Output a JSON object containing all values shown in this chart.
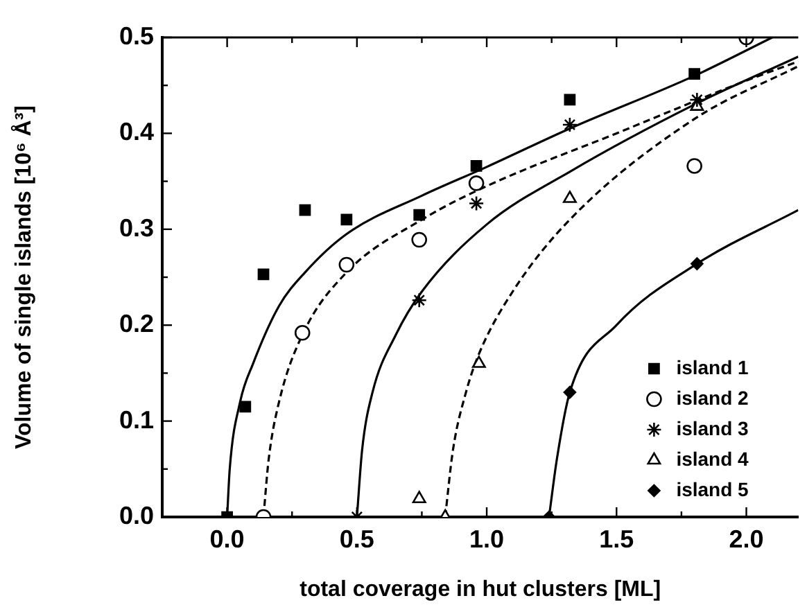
{
  "chart_data": {
    "type": "scatter",
    "xlabel": "total coverage in hut clusters [ML]",
    "ylabel": "Volume of single islands [10⁶ Å³]",
    "xlim": [
      -0.25,
      2.2
    ],
    "ylim": [
      0,
      0.5
    ],
    "xticks": [
      {
        "value": -0.25,
        "label": null
      },
      {
        "value": 0,
        "label": "0.0"
      },
      {
        "value": 0.25,
        "label": null
      },
      {
        "value": 0.5,
        "label": "0.5"
      },
      {
        "value": 0.75,
        "label": null
      },
      {
        "value": 1,
        "label": "1.0"
      },
      {
        "value": 1.25,
        "label": null
      },
      {
        "value": 1.5,
        "label": "1.5"
      },
      {
        "value": 1.75,
        "label": null
      },
      {
        "value": 2,
        "label": "2.0"
      }
    ],
    "yticks": [
      {
        "value": 0,
        "label": "0.0"
      },
      {
        "value": 0.05,
        "label": null
      },
      {
        "value": 0.1,
        "label": "0.1"
      },
      {
        "value": 0.15,
        "label": null
      },
      {
        "value": 0.2,
        "label": "0.2"
      },
      {
        "value": 0.25,
        "label": null
      },
      {
        "value": 0.3,
        "label": "0.3"
      },
      {
        "value": 0.35,
        "label": null
      },
      {
        "value": 0.4,
        "label": "0.4"
      },
      {
        "value": 0.45,
        "label": null
      },
      {
        "value": 0.5,
        "label": "0.5"
      }
    ],
    "legend": "bottom right",
    "series": [
      {
        "name": "island 1",
        "color": "#000000",
        "marker": "square",
        "x": [
          0,
          0.07,
          0.14,
          0.3,
          0.46,
          0.74,
          0.96,
          1.32,
          1.8
        ],
        "values": [
          0,
          0.115,
          0.253,
          0.32,
          0.31,
          0.315,
          0.366,
          0.435,
          0.462
        ]
      },
      {
        "name": "island 2",
        "color": "#000000",
        "marker": "circle",
        "x": [
          0.14,
          0.29,
          0.46,
          0.74,
          0.96,
          1.8,
          2.0
        ],
        "values": [
          0,
          0.192,
          0.263,
          0.289,
          0.348,
          0.366,
          0.5
        ]
      },
      {
        "name": "island 3",
        "color": "#000000",
        "marker": "cross",
        "x": [
          0.5,
          0.74,
          0.96,
          1.32,
          1.81
        ],
        "values": [
          0,
          0.226,
          0.327,
          0.409,
          0.435
        ]
      },
      {
        "name": "island 4",
        "color": "#000000",
        "marker": "triangle",
        "x": [
          0.84,
          0.74,
          0.97,
          1.32,
          1.81
        ],
        "values": [
          0,
          0.019,
          0.16,
          0.332,
          0.428
        ]
      },
      {
        "name": "island 5",
        "color": "#000000",
        "marker": "diamond",
        "x": [
          1.24,
          1.32,
          1.81
        ],
        "values": [
          0,
          0.13,
          0.264
        ]
      },
      {
        "type": "line",
        "color": "#000000",
        "marker": "none",
        "line_style": "solid",
        "x": [
          0,
          0.01,
          0.05,
          0.1,
          0.2,
          0.3,
          0.46,
          0.75,
          1.0,
          1.32,
          1.8,
          2.1
        ],
        "values": [
          0,
          0.05,
          0.12,
          0.16,
          0.22,
          0.255,
          0.295,
          0.335,
          0.365,
          0.405,
          0.46,
          0.5
        ]
      },
      {
        "type": "line",
        "color": "#000000",
        "marker": "none",
        "line_style": "dashed",
        "x": [
          0.14,
          0.16,
          0.2,
          0.29,
          0.46,
          0.75,
          1.0,
          1.5,
          2.0,
          2.2
        ],
        "values": [
          0,
          0.06,
          0.12,
          0.19,
          0.255,
          0.31,
          0.345,
          0.4,
          0.455,
          0.475
        ]
      },
      {
        "type": "line",
        "color": "#000000",
        "marker": "none",
        "line_style": "solid",
        "x": [
          0.5,
          0.52,
          0.56,
          0.65,
          0.75,
          1.0,
          1.32,
          1.8,
          2.2
        ],
        "values": [
          0,
          0.07,
          0.13,
          0.19,
          0.235,
          0.305,
          0.36,
          0.43,
          0.48
        ]
      },
      {
        "type": "line",
        "color": "#000000",
        "marker": "none",
        "line_style": "dashed",
        "x": [
          0.84,
          0.87,
          0.92,
          0.97,
          1.1,
          1.32,
          1.8,
          2.2
        ],
        "values": [
          0,
          0.07,
          0.13,
          0.17,
          0.235,
          0.31,
          0.415,
          0.47
        ]
      },
      {
        "type": "line",
        "color": "#000000",
        "marker": "none",
        "line_style": "solid",
        "x": [
          1.24,
          1.27,
          1.32,
          1.5,
          1.81,
          2.2
        ],
        "values": [
          0,
          0.06,
          0.13,
          0.2,
          0.264,
          0.32
        ]
      }
    ]
  }
}
